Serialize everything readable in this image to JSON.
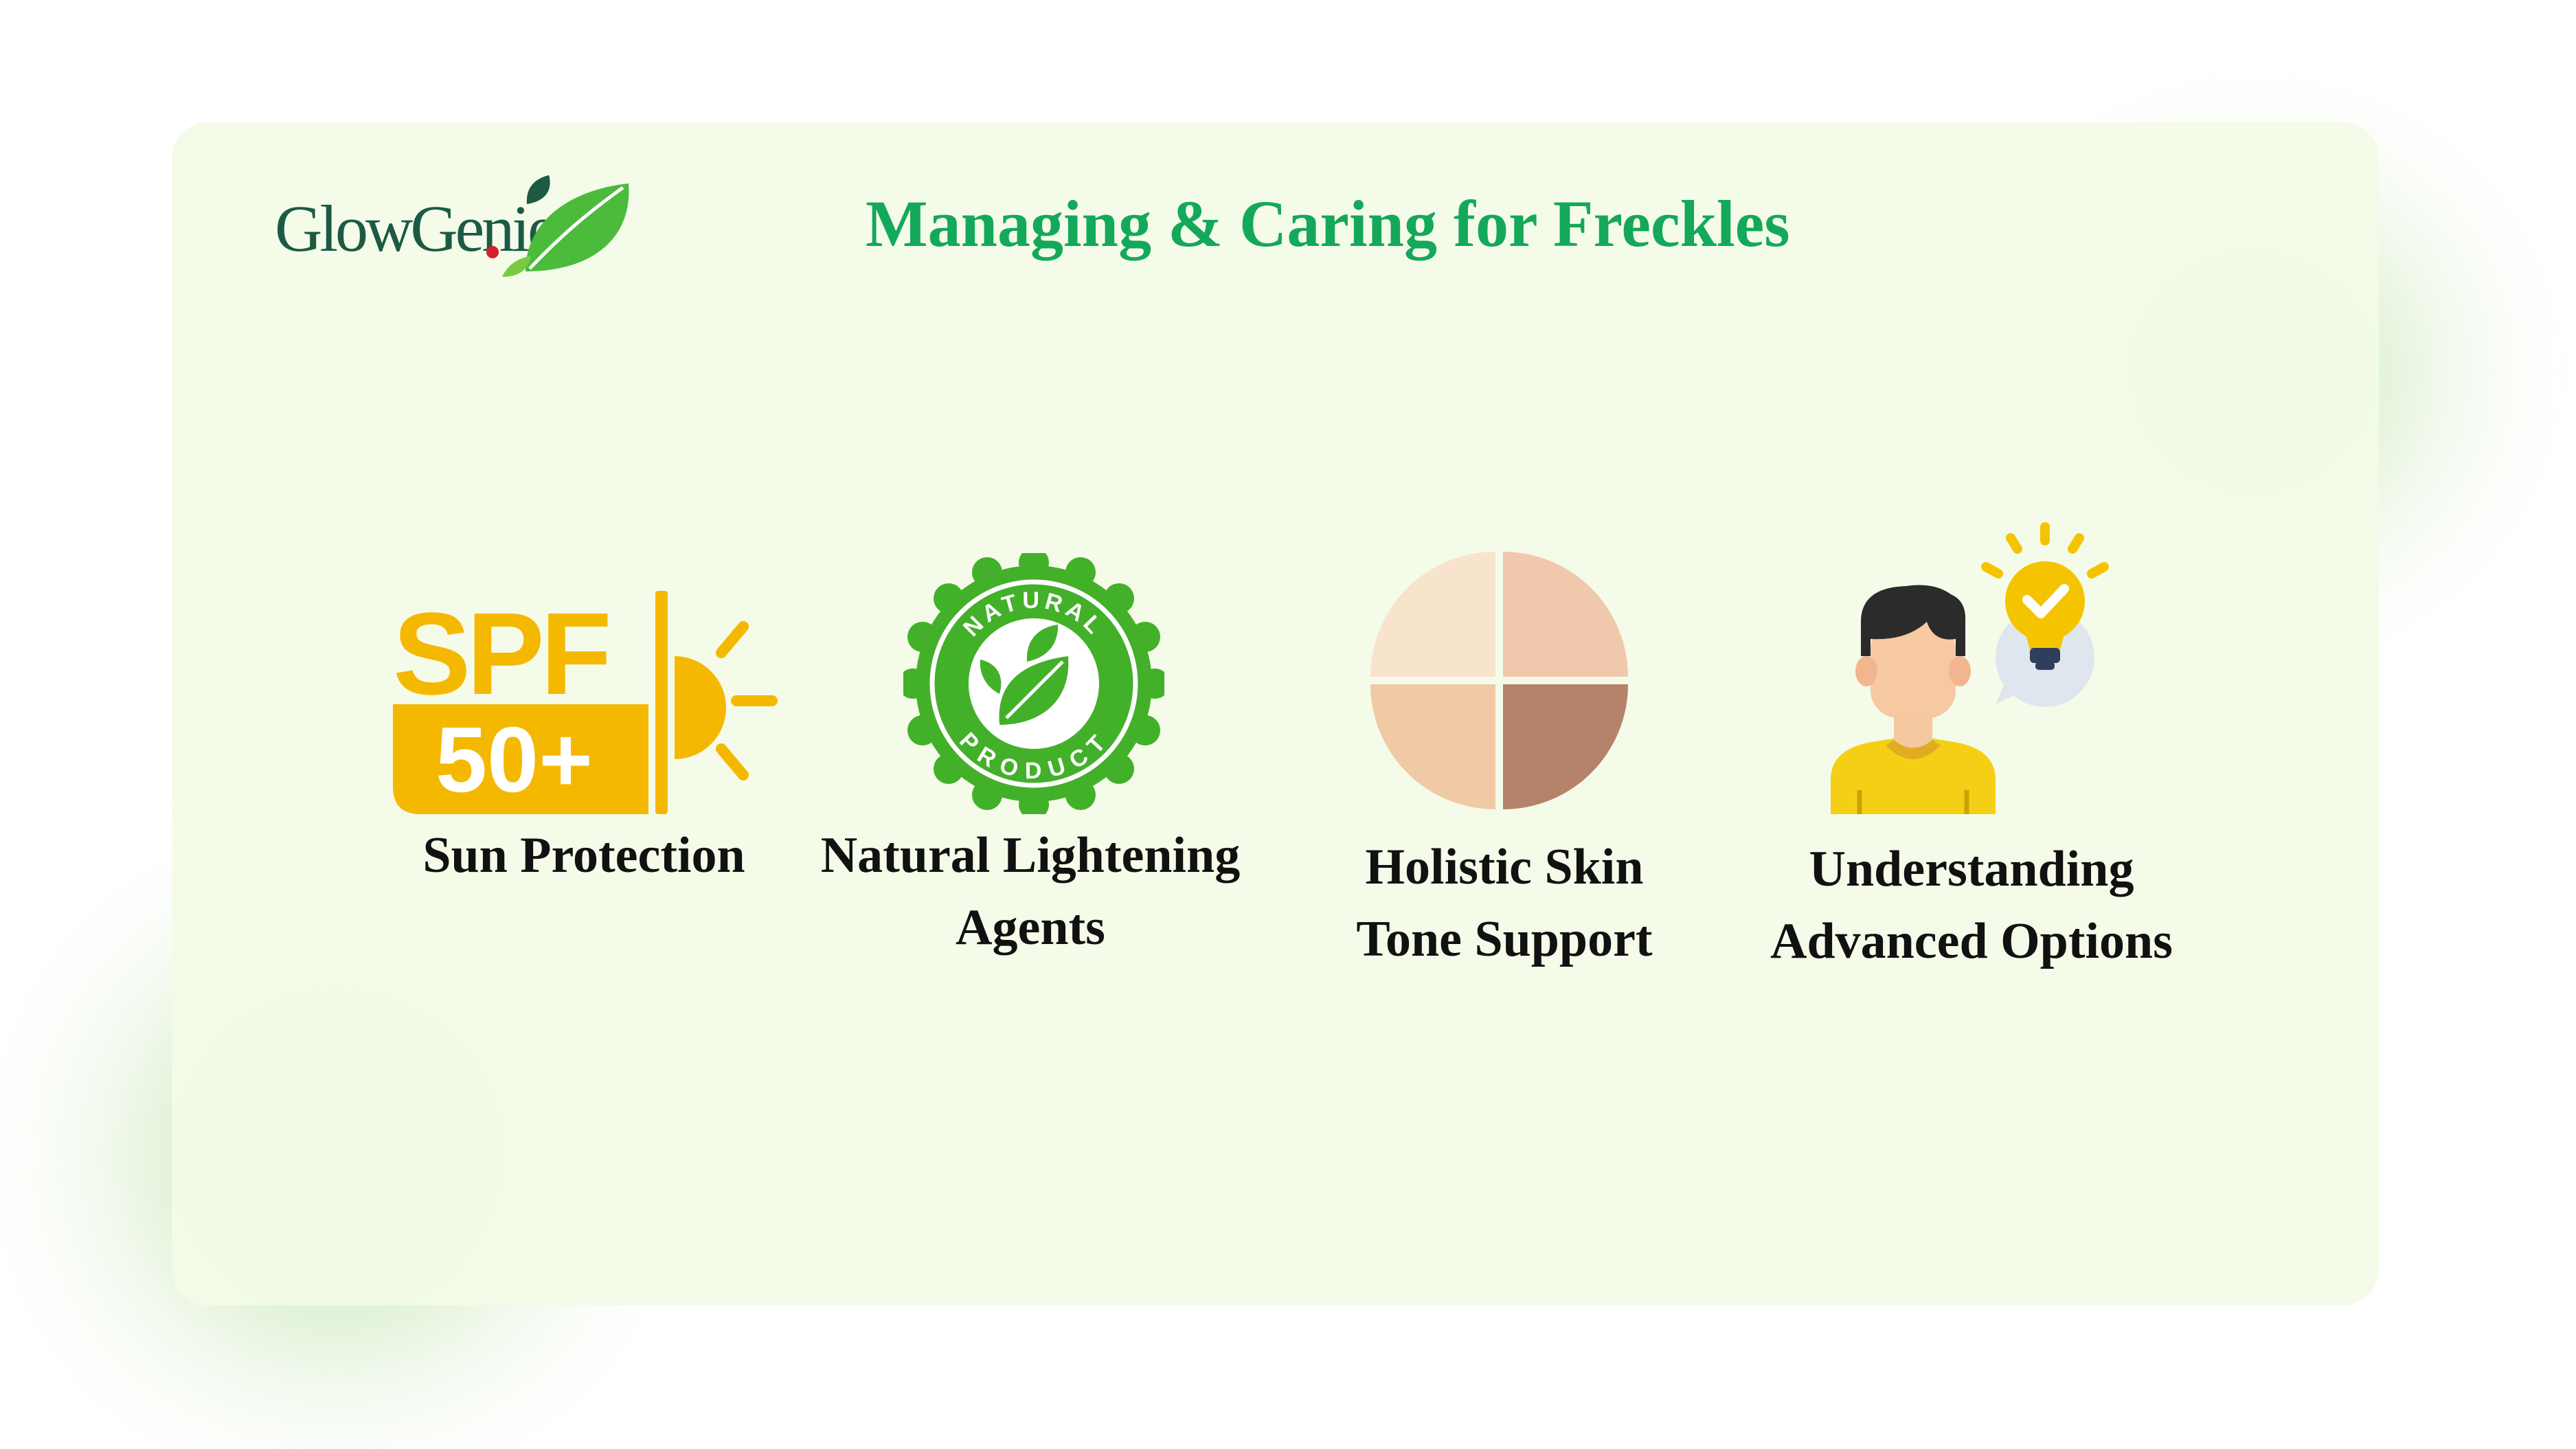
{
  "brand": {
    "name": "GlowGenie",
    "logo_icon": "leaf-logo-icon"
  },
  "title": "Managing & Caring for Freckles",
  "features": [
    {
      "icon": "spf-sun-icon",
      "icon_text_top": "SPF",
      "icon_text_bottom": "50+",
      "label_lines": [
        "Sun Protection"
      ]
    },
    {
      "icon": "natural-product-badge-icon",
      "badge_top": "NATURAL",
      "badge_bottom": "PRODUCT",
      "label_lines": [
        "Natural Lightening",
        "Agents"
      ]
    },
    {
      "icon": "skin-tone-palette-icon",
      "label_lines": [
        "Holistic Skin",
        "Tone Support"
      ]
    },
    {
      "icon": "person-idea-bulb-icon",
      "label_lines": [
        "Understanding",
        "Advanced Options"
      ]
    }
  ],
  "colors": {
    "title": "#14a85a",
    "card_background": "#f3fbe7",
    "spf_orange": "#f5b800",
    "badge_green": "#43b02a",
    "logo_text": "#1c5a44"
  }
}
